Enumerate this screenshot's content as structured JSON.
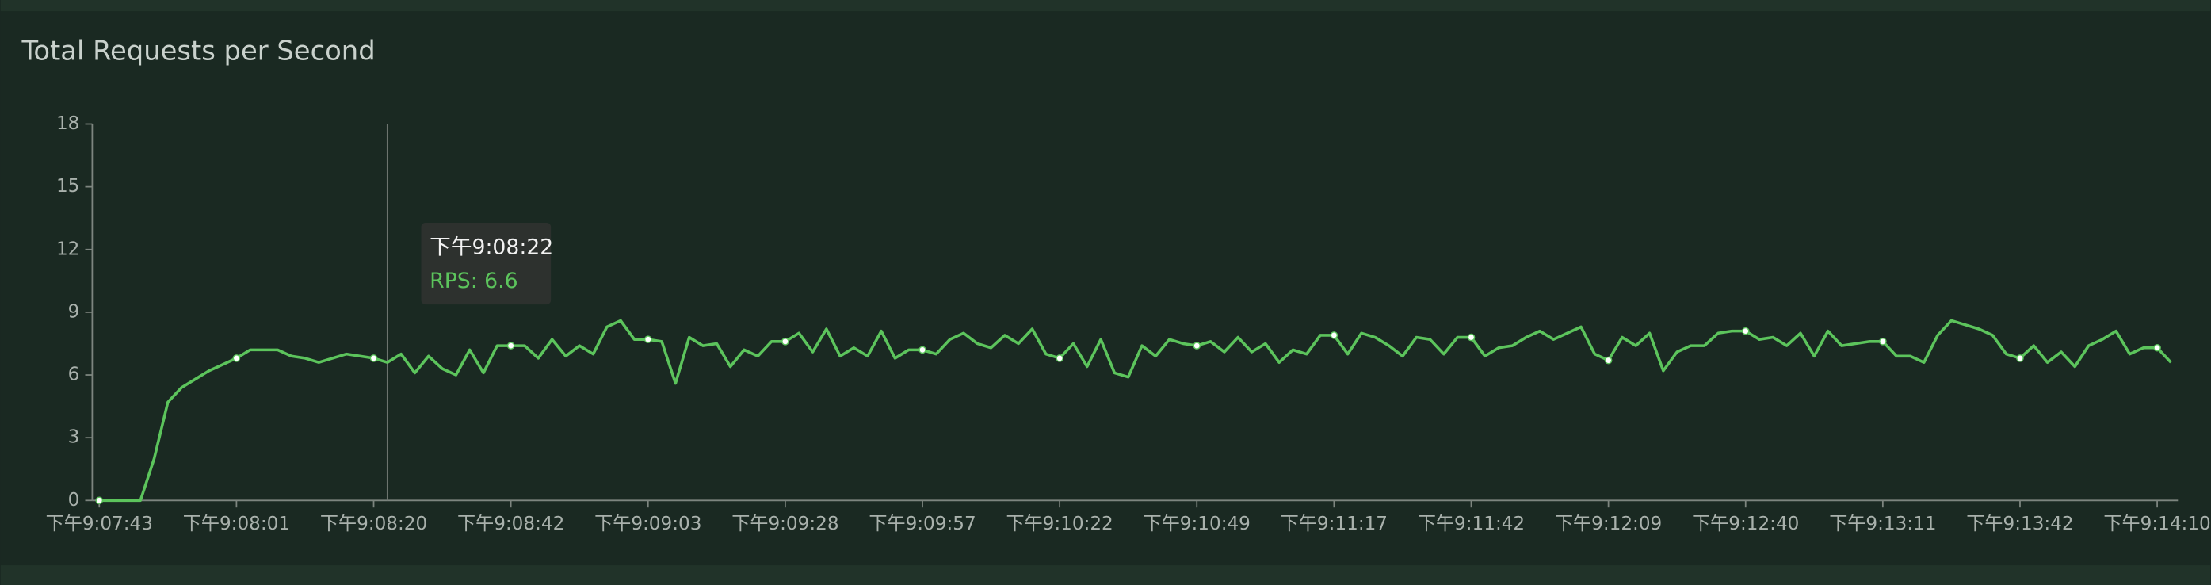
{
  "chart_data": {
    "type": "line",
    "title": "Total Requests per Second",
    "categories": [
      "下午9:07:43",
      null,
      null,
      null,
      null,
      null,
      null,
      null,
      null,
      null,
      "下午9:08:01",
      null,
      null,
      null,
      null,
      null,
      null,
      null,
      null,
      null,
      "下午9:08:20",
      null,
      null,
      null,
      null,
      null,
      null,
      null,
      null,
      null,
      "下午9:08:42",
      null,
      null,
      null,
      null,
      null,
      null,
      null,
      null,
      null,
      "下午9:09:03",
      null,
      null,
      null,
      null,
      null,
      null,
      null,
      null,
      null,
      "下午9:09:28",
      null,
      null,
      null,
      null,
      null,
      null,
      null,
      null,
      null,
      "下午9:09:57",
      null,
      null,
      null,
      null,
      null,
      null,
      null,
      null,
      null,
      "下午9:10:22",
      null,
      null,
      null,
      null,
      null,
      null,
      null,
      null,
      null,
      "下午9:10:49",
      null,
      null,
      null,
      null,
      null,
      null,
      null,
      null,
      null,
      "下午9:11:17",
      null,
      null,
      null,
      null,
      null,
      null,
      null,
      null,
      null,
      "下午9:11:42",
      null,
      null,
      null,
      null,
      null,
      null,
      null,
      null,
      null,
      "下午9:12:09",
      null,
      null,
      null,
      null,
      null,
      null,
      null,
      null,
      null,
      "下午9:12:40",
      null,
      null,
      null,
      null,
      null,
      null,
      null,
      null,
      null,
      "下午9:13:11",
      null,
      null,
      null,
      null,
      null,
      null,
      null,
      null,
      null,
      "下午9:13:42",
      null,
      null,
      null,
      null,
      null,
      null,
      null,
      null,
      null,
      "下午9:14:10",
      null
    ],
    "series": [
      {
        "name": "RPS",
        "color": "#5cc45c",
        "values": [
          0,
          0,
          0,
          0,
          2,
          4.7,
          5.4,
          5.8,
          6.2,
          6.5,
          6.8,
          7.2,
          7.2,
          7.2,
          6.9,
          6.8,
          6.6,
          6.8,
          7.0,
          6.9,
          6.8,
          6.6,
          7.0,
          6.1,
          6.9,
          6.3,
          6.0,
          7.2,
          6.1,
          7.4,
          7.4,
          7.4,
          6.8,
          7.7,
          6.9,
          7.4,
          7.0,
          8.3,
          8.6,
          7.7,
          7.7,
          7.6,
          5.6,
          7.8,
          7.4,
          7.5,
          6.4,
          7.2,
          6.9,
          7.6,
          7.6,
          8.0,
          7.1,
          8.2,
          6.9,
          7.3,
          6.9,
          8.1,
          6.8,
          7.2,
          7.2,
          7.0,
          7.7,
          8.0,
          7.5,
          7.3,
          7.9,
          7.5,
          8.2,
          7.0,
          6.8,
          7.5,
          6.4,
          7.7,
          6.1,
          5.9,
          7.4,
          6.9,
          7.7,
          7.5,
          7.4,
          7.6,
          7.1,
          7.8,
          7.1,
          7.5,
          6.6,
          7.2,
          7.0,
          7.9,
          7.9,
          7.0,
          8.0,
          7.8,
          7.4,
          6.9,
          7.8,
          7.7,
          7.0,
          7.8,
          7.8,
          6.9,
          7.3,
          7.4,
          7.8,
          8.1,
          7.7,
          8.0,
          8.3,
          7.0,
          6.7,
          7.8,
          7.4,
          8.0,
          6.2,
          7.1,
          7.4,
          7.4,
          8.0,
          8.1,
          8.1,
          7.7,
          7.8,
          7.4,
          8.0,
          6.9,
          8.1,
          7.4,
          7.5,
          7.6,
          7.6,
          6.9,
          6.9,
          6.6,
          7.9,
          8.6,
          8.4,
          8.2,
          7.9,
          7.0,
          6.8,
          7.4,
          6.6,
          7.1,
          6.4,
          7.4,
          7.7,
          8.1,
          7.0,
          7.3,
          7.3,
          6.6
        ]
      }
    ],
    "ylim": [
      0,
      18
    ],
    "yticks": [
      0,
      3,
      6,
      9,
      12,
      15,
      18
    ],
    "grid": false,
    "tooltip": {
      "title": "下午9:08:22",
      "text": "RPS: 6.6"
    }
  }
}
